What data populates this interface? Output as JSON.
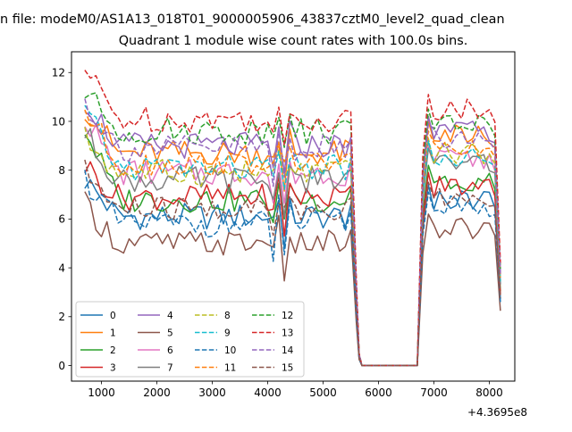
{
  "suptitle": "n file: modeM0/AS1A13_018T01_9000005906_43837cztM0_level2_quad_clean",
  "chart_data": {
    "type": "line",
    "title": "Quadrant 1 module wise count rates with 100.0s bins.",
    "xlabel": "",
    "ylabel": "",
    "x_offset_label": "+4.3695e8",
    "xlim": [
      460,
      8460
    ],
    "ylim": [
      -0.64,
      12.85
    ],
    "xticks": [
      1000,
      2000,
      3000,
      4000,
      5000,
      6000,
      7000,
      8000
    ],
    "yticks": [
      0,
      2,
      4,
      6,
      8,
      10,
      12
    ],
    "grid": false,
    "legend_placement": "lower-left",
    "shape": {
      "gap_start_x": 5700,
      "gap_end_x": 6700,
      "points": [
        {
          "x": 5500,
          "f": 0.95
        },
        {
          "x": 5600,
          "f": 0.35
        },
        {
          "x": 5650,
          "f": 0.05
        },
        {
          "x": 5700,
          "f": 0.0
        },
        {
          "x": 6700,
          "f": 0.0
        },
        {
          "x": 6800,
          "f": 0.82
        },
        {
          "x": 6900,
          "f": 1.0
        },
        {
          "x": 8100,
          "f": 0.95
        },
        {
          "x": 8200,
          "f": 0.4
        }
      ]
    },
    "series": [
      {
        "name": "0",
        "color": "#1f77b4",
        "dash": "solid",
        "start": 7.6,
        "level": 6.1,
        "end": 6.8
      },
      {
        "name": "1",
        "color": "#ff7f0e",
        "dash": "solid",
        "start": 10.6,
        "level": 8.7,
        "end": 9.4
      },
      {
        "name": "2",
        "color": "#2ca02c",
        "dash": "solid",
        "start": 9.7,
        "level": 6.8,
        "end": 7.6
      },
      {
        "name": "3",
        "color": "#d62728",
        "dash": "solid",
        "start": 8.2,
        "level": 6.9,
        "end": 7.3
      },
      {
        "name": "4",
        "color": "#9467bd",
        "dash": "solid",
        "start": 10.9,
        "level": 9.0,
        "end": 9.6
      },
      {
        "name": "5",
        "color": "#8c564b",
        "dash": "solid",
        "start": 6.6,
        "level": 5.0,
        "end": 5.6
      },
      {
        "name": "6",
        "color": "#e377c2",
        "dash": "solid",
        "start": 10.2,
        "level": 7.9,
        "end": 8.4
      },
      {
        "name": "7",
        "color": "#7f7f7f",
        "dash": "solid",
        "start": 9.5,
        "level": 7.6,
        "end": 8.3
      },
      {
        "name": "8",
        "color": "#bcbd22",
        "dash": "dashed",
        "start": 9.3,
        "level": 7.9,
        "end": 8.7
      },
      {
        "name": "9",
        "color": "#17becf",
        "dash": "dashed",
        "start": 10.4,
        "level": 8.1,
        "end": 8.6
      },
      {
        "name": "10",
        "color": "#1f77b4",
        "dash": "dashed",
        "start": 7.7,
        "level": 5.8,
        "end": 6.5
      },
      {
        "name": "11",
        "color": "#ff7f0e",
        "dash": "dashed",
        "start": 10.5,
        "level": 8.3,
        "end": 9.0
      },
      {
        "name": "12",
        "color": "#2ca02c",
        "dash": "dashed",
        "start": 11.2,
        "level": 9.6,
        "end": 9.9
      },
      {
        "name": "13",
        "color": "#d62728",
        "dash": "dashed",
        "start": 12.1,
        "level": 10.1,
        "end": 10.5
      },
      {
        "name": "14",
        "color": "#9467bd",
        "dash": "dashed",
        "start": 10.8,
        "level": 8.9,
        "end": 9.3
      },
      {
        "name": "15",
        "color": "#8c564b",
        "dash": "dashed",
        "start": 7.9,
        "level": 6.4,
        "end": 6.9
      }
    ]
  }
}
